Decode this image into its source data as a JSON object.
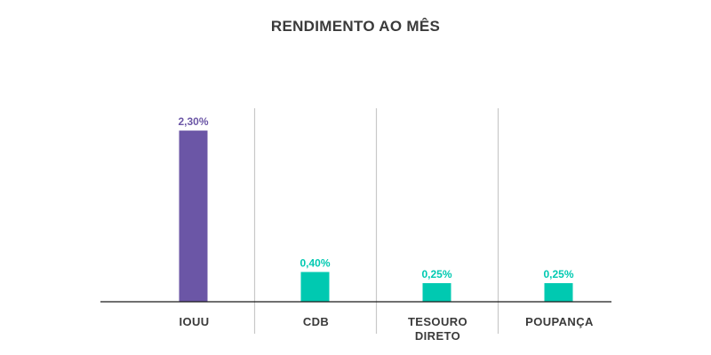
{
  "chart_data": {
    "type": "bar",
    "title": "RENDIMENTO AO MÊS",
    "categories": [
      [
        "IOUU"
      ],
      [
        "CDB"
      ],
      [
        "TESOURO",
        "DIRETO"
      ],
      [
        "POUPANÇA"
      ]
    ],
    "values": [
      2.3,
      0.4,
      0.25,
      0.25
    ],
    "value_labels": [
      "2,30%",
      "0,40%",
      "0,25%",
      "0,25%"
    ],
    "colors": [
      "#6b56a6",
      "#00c9b1",
      "#00c9b1",
      "#00c9b1"
    ],
    "xlabel": "",
    "ylabel": "",
    "ylim": [
      0,
      2.6
    ],
    "grid": false,
    "legend": "none"
  }
}
